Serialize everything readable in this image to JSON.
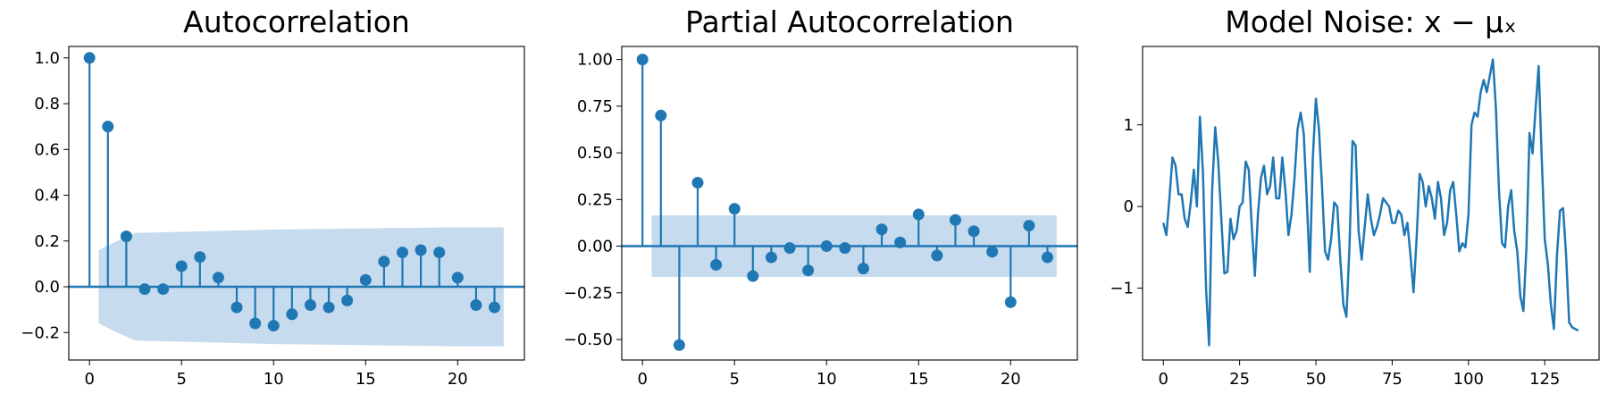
{
  "chart_data": [
    {
      "type": "stem",
      "title": "Autocorrelation",
      "color": "#1f77b4",
      "x": [
        0,
        1,
        2,
        3,
        4,
        5,
        6,
        7,
        8,
        9,
        10,
        11,
        12,
        13,
        14,
        15,
        16,
        17,
        18,
        19,
        20,
        21,
        22
      ],
      "values": [
        1.0,
        0.7,
        0.22,
        -0.01,
        -0.01,
        0.09,
        0.13,
        0.04,
        -0.09,
        -0.16,
        -0.17,
        -0.12,
        -0.08,
        -0.09,
        -0.06,
        0.03,
        0.11,
        0.15,
        0.16,
        0.15,
        0.04,
        -0.08,
        -0.09
      ],
      "band": {
        "color": "#c6dbed",
        "x": [
          0.5,
          1.5,
          2.5,
          5,
          10,
          15,
          20,
          22.5
        ],
        "upper": [
          0.16,
          0.2,
          0.235,
          0.24,
          0.25,
          0.255,
          0.26,
          0.26
        ],
        "lower": [
          -0.16,
          -0.2,
          -0.235,
          -0.24,
          -0.25,
          -0.255,
          -0.26,
          -0.26
        ]
      },
      "xlim": [
        -1.125,
        23.625
      ],
      "ylim": [
        -0.32,
        1.05
      ],
      "xticks": [
        0,
        5,
        10,
        15,
        20
      ],
      "yticks": [
        {
          "value": -0.2,
          "label": "−0.2"
        },
        {
          "value": 0,
          "label": "0.0"
        },
        0.2,
        0.4,
        0.6,
        0.8,
        {
          "value": 1,
          "label": "1.0"
        }
      ]
    },
    {
      "type": "stem",
      "title": "Partial Autocorrelation",
      "color": "#1f77b4",
      "x": [
        0,
        1,
        2,
        3,
        4,
        5,
        6,
        7,
        8,
        9,
        10,
        11,
        12,
        13,
        14,
        15,
        16,
        17,
        18,
        19,
        20,
        21,
        22
      ],
      "values": [
        1.0,
        0.7,
        -0.53,
        0.34,
        -0.1,
        0.2,
        -0.16,
        -0.06,
        -0.01,
        -0.13,
        0.0,
        -0.01,
        -0.12,
        0.09,
        0.02,
        0.17,
        -0.05,
        0.14,
        0.08,
        -0.03,
        -0.3,
        0.11,
        -0.06
      ],
      "band": {
        "color": "#c6dbed",
        "x": [
          0.5,
          22.5
        ],
        "upper": [
          0.165,
          0.165
        ],
        "lower": [
          -0.165,
          -0.165
        ]
      },
      "xlim": [
        -1.125,
        23.625
      ],
      "ylim": [
        -0.61,
        1.07
      ],
      "xticks": [
        0,
        5,
        10,
        15,
        20
      ],
      "yticks": [
        {
          "value": -0.5,
          "label": "−0.50"
        },
        {
          "value": -0.25,
          "label": "−0.25"
        },
        {
          "value": 0,
          "label": "0.00"
        },
        0.25,
        {
          "value": 0.5,
          "label": "0.50"
        },
        0.75,
        {
          "value": 1,
          "label": "1.00"
        }
      ]
    },
    {
      "type": "line",
      "title": "Model Noise: x − μₓ",
      "color": "#1f77b4",
      "x": [
        0,
        1,
        2,
        3,
        4,
        5,
        6,
        7,
        8,
        9,
        10,
        11,
        12,
        13,
        14,
        15,
        16,
        17,
        18,
        19,
        20,
        21,
        22,
        23,
        24,
        25,
        26,
        27,
        28,
        29,
        30,
        31,
        32,
        33,
        34,
        35,
        36,
        37,
        38,
        39,
        40,
        41,
        42,
        43,
        44,
        45,
        46,
        47,
        48,
        49,
        50,
        51,
        52,
        53,
        54,
        55,
        56,
        57,
        58,
        59,
        60,
        61,
        62,
        63,
        64,
        65,
        66,
        67,
        68,
        69,
        70,
        71,
        72,
        73,
        74,
        75,
        76,
        77,
        78,
        79,
        80,
        81,
        82,
        83,
        84,
        85,
        86,
        87,
        88,
        89,
        90,
        91,
        92,
        93,
        94,
        95,
        96,
        97,
        98,
        99,
        100,
        101,
        102,
        103,
        104,
        105,
        106,
        107,
        108,
        109,
        110,
        111,
        112,
        113,
        114,
        115,
        116,
        117,
        118,
        119,
        120,
        121,
        122,
        123,
        124,
        125,
        126,
        127,
        128,
        129,
        130,
        131,
        132,
        133,
        134,
        135,
        136
      ],
      "values": [
        -0.2,
        -0.35,
        0.1,
        0.6,
        0.5,
        0.15,
        0.15,
        -0.15,
        -0.25,
        0.05,
        0.45,
        0.0,
        1.1,
        0.4,
        -1.0,
        -1.7,
        0.2,
        0.97,
        0.55,
        -0.15,
        -0.82,
        -0.8,
        -0.15,
        -0.4,
        -0.3,
        0.0,
        0.05,
        0.55,
        0.45,
        -0.25,
        -0.85,
        -0.1,
        0.35,
        0.5,
        0.15,
        0.25,
        0.6,
        0.1,
        0.1,
        0.6,
        0.2,
        -0.35,
        -0.1,
        0.35,
        0.95,
        1.15,
        0.9,
        0.1,
        -0.8,
        0.6,
        1.32,
        0.95,
        0.25,
        -0.55,
        -0.65,
        -0.4,
        0.05,
        0.0,
        -0.65,
        -1.2,
        -1.35,
        -0.5,
        0.8,
        0.75,
        -0.3,
        -0.65,
        -0.25,
        0.15,
        -0.15,
        -0.35,
        -0.25,
        -0.1,
        0.1,
        0.05,
        0.0,
        -0.2,
        -0.2,
        -0.05,
        -0.1,
        -0.35,
        -0.2,
        -0.6,
        -1.05,
        -0.4,
        0.4,
        0.3,
        0.0,
        0.25,
        0.1,
        -0.15,
        0.3,
        0.1,
        -0.35,
        -0.2,
        0.2,
        0.3,
        -0.1,
        -0.55,
        -0.45,
        -0.5,
        -0.1,
        1.0,
        1.15,
        1.1,
        1.4,
        1.55,
        1.4,
        1.6,
        1.8,
        1.2,
        0.2,
        -0.45,
        -0.5,
        0.0,
        0.2,
        -0.3,
        -0.55,
        -1.1,
        -1.28,
        -0.5,
        0.9,
        0.65,
        1.2,
        1.72,
        0.6,
        -0.4,
        -0.7,
        -1.2,
        -1.5,
        -0.6,
        -0.05,
        -0.02,
        -0.6,
        -1.42,
        -1.48,
        -1.5,
        -1.52
      ],
      "xlim": [
        -6.8,
        142.8
      ],
      "ylim": [
        -1.88,
        1.96
      ],
      "xticks": [
        0,
        25,
        50,
        75,
        100,
        125
      ],
      "yticks": [
        {
          "value": -1,
          "label": "−1"
        },
        0,
        1
      ]
    }
  ]
}
